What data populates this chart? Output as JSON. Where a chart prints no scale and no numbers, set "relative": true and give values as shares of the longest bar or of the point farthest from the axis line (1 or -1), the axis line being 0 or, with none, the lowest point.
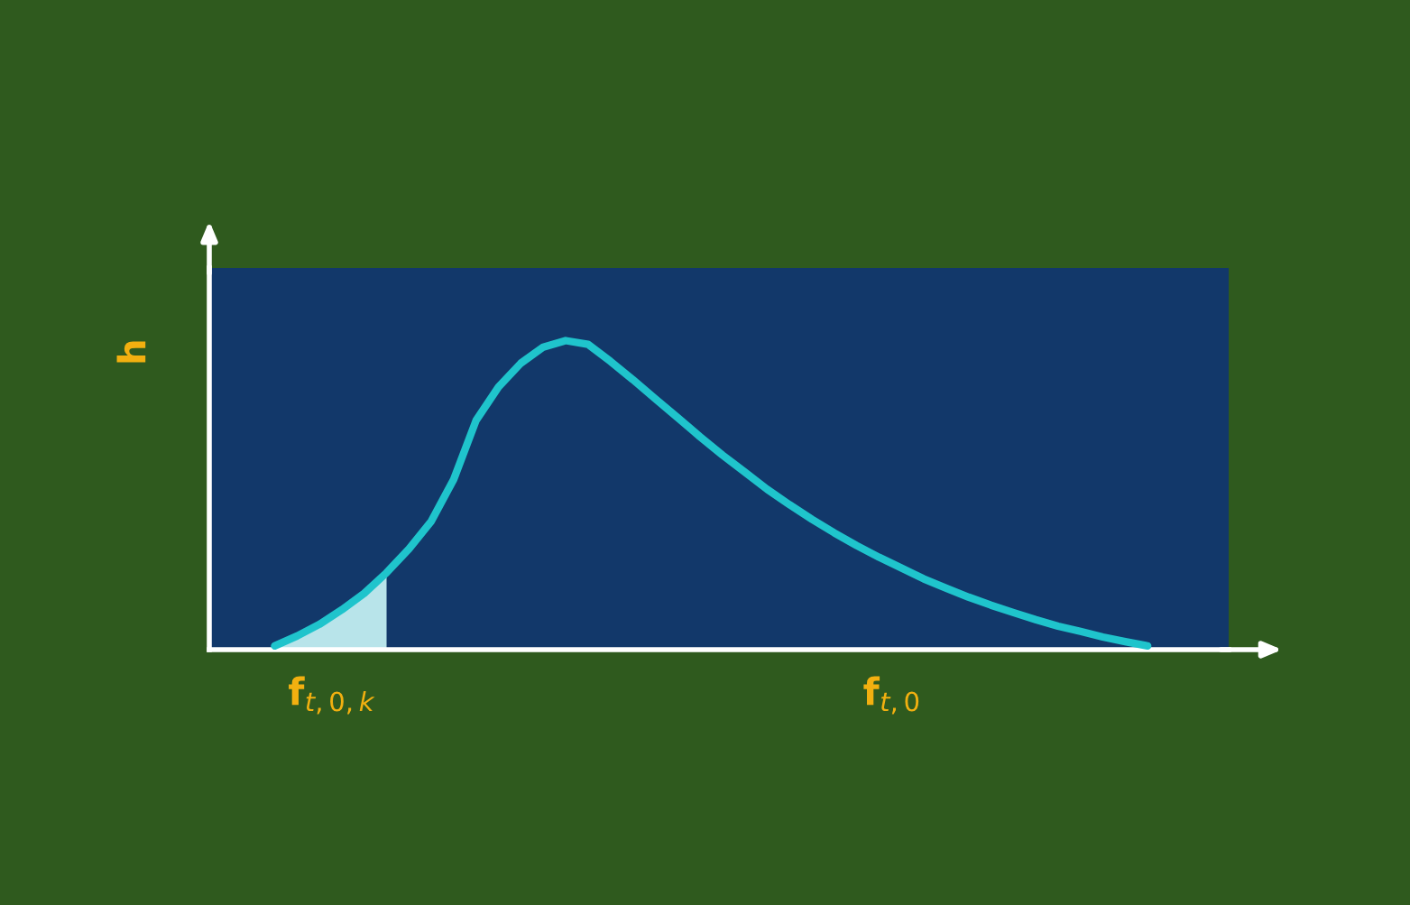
{
  "chart_data": {
    "type": "line",
    "relative": true,
    "ylabel": "h",
    "xlabel": "f$_{t,0}$",
    "annotations": [
      "f$_{t,0,k}$"
    ],
    "categories": [
      null,
      null,
      null,
      null,
      null,
      null,
      null,
      null,
      null,
      null,
      null,
      null,
      null,
      null,
      null,
      null,
      null,
      null,
      null,
      null,
      null,
      null,
      null,
      null,
      null,
      null,
      null,
      null,
      null,
      null,
      null,
      null,
      null,
      null,
      null,
      null,
      null,
      null,
      null,
      null
    ],
    "series": [
      {
        "type": "area",
        "color": "#b8e4ea",
        "values": [
          0.012,
          0.044,
          0.082,
          0.129,
          0.182,
          0.249,
          null,
          null,
          null,
          null,
          null,
          null,
          null,
          null,
          null,
          null,
          null,
          null,
          null,
          null,
          null,
          null,
          null,
          null,
          null,
          null,
          null,
          null,
          null,
          null,
          null,
          null,
          null,
          null,
          null,
          null,
          null,
          null,
          null,
          null
        ]
      },
      {
        "color": "#1fc4cc",
        "values": [
          0.012,
          0.044,
          0.082,
          0.129,
          0.182,
          0.249,
          0.326,
          0.416,
          0.551,
          0.742,
          0.85,
          0.927,
          0.979,
          1.0,
          0.988,
          0.933,
          0.874,
          0.812,
          0.751,
          0.689,
          0.63,
          0.575,
          0.519,
          0.469,
          0.422,
          0.378,
          0.337,
          0.299,
          0.264,
          0.229,
          0.199,
          0.17,
          0.144,
          0.12,
          0.097,
          0.076,
          0.059,
          0.041,
          0.026,
          0.012
        ]
      }
    ],
    "grid": false,
    "legend": false,
    "marker": "none",
    "line_style": "solid"
  }
}
